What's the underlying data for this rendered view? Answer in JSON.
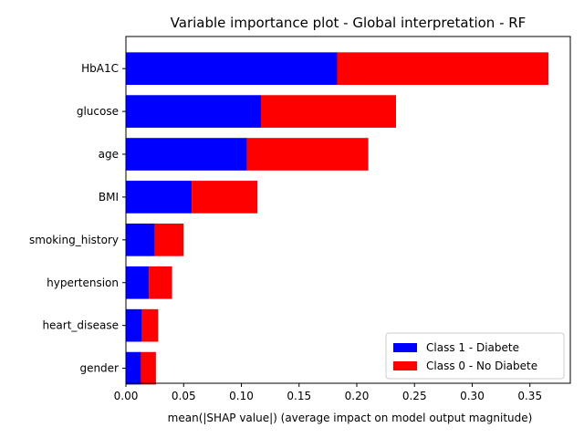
{
  "chart_data": {
    "type": "bar",
    "orientation": "horizontal",
    "stacked": true,
    "title": "Variable importance plot - Global interpretation - RF",
    "xlabel": "mean(|SHAP value|) (average impact on model output magnitude)",
    "ylabel": "",
    "categories": [
      "HbA1C",
      "glucose",
      "age",
      "BMI",
      "smoking_history",
      "hypertension",
      "heart_disease",
      "gender"
    ],
    "series": [
      {
        "name": "Class 1 - Diabete",
        "color": "#0000ff",
        "values": [
          0.183,
          0.117,
          0.105,
          0.057,
          0.025,
          0.02,
          0.014,
          0.013
        ]
      },
      {
        "name": "Class 0 - No Diabete",
        "color": "#ff0000",
        "values": [
          0.183,
          0.117,
          0.105,
          0.057,
          0.025,
          0.02,
          0.014,
          0.013
        ]
      }
    ],
    "xlim": [
      0,
      0.385
    ],
    "xticks": [
      "0.00",
      "0.05",
      "0.10",
      "0.15",
      "0.20",
      "0.25",
      "0.30",
      "0.35"
    ],
    "grid": false,
    "legend_position": "lower-right"
  }
}
